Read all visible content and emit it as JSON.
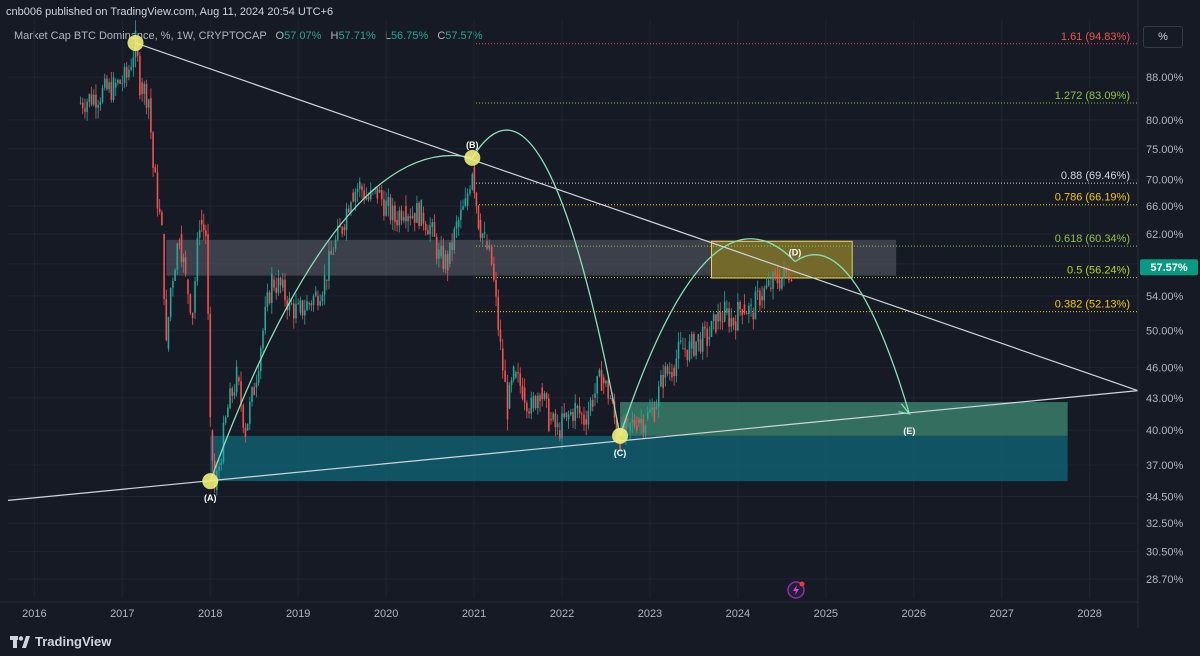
{
  "header": {
    "publisher": "cnb006 published on TradingView.com, Aug 11, 2024 20:54 UTC+6",
    "symbol": "Market Cap BTC Dominance, %, 1W, CRYPTOCAP",
    "ohlc": [
      {
        "k": "O",
        "v": "57.07%"
      },
      {
        "k": "H",
        "v": "57.71%"
      },
      {
        "k": "L",
        "v": "56.75%"
      },
      {
        "k": "C",
        "v": "57.57%"
      }
    ],
    "scale_button": "%"
  },
  "footer": {
    "brand": "TradingView",
    "brand_icon": "tradingview-logo-icon"
  },
  "colors": {
    "background": "#161a25",
    "up": "#26a69a",
    "down": "#ef5350",
    "trendline": "#d1d4dc",
    "arc": "#89e0b8",
    "pivot": "#f0f07a",
    "teal_zone": "#0f5f6e",
    "green_zone": "#3d8b73",
    "gray_zone": "#5d606b",
    "yellow_zone": "#8a7a1c"
  },
  "chart_data": {
    "type": "line",
    "title": "Market Cap BTC Dominance, %, 1W, CRYPTOCAP",
    "scale": "log",
    "x_ticks": [
      "2016",
      "2017",
      "2018",
      "2019",
      "2020",
      "2021",
      "2022",
      "2023",
      "2024",
      "2025",
      "2026",
      "2027",
      "2028"
    ],
    "y_ticks": [
      "88.00%",
      "80.00%",
      "75.00%",
      "70.00%",
      "66.00%",
      "62.00%",
      "58.00%",
      "54.00%",
      "50.00%",
      "46.00%",
      "43.00%",
      "40.00%",
      "37.00%",
      "34.50%",
      "32.50%",
      "30.50%",
      "28.70%"
    ],
    "last_price": "57.57%",
    "ylim": [
      27.5,
      100
    ],
    "xlim": [
      2015.7,
      2028.55
    ],
    "series": [
      {
        "values": [
          [
            2016.5,
            83
          ],
          [
            2016.9,
            86
          ],
          [
            2017.05,
            88
          ],
          [
            2017.15,
            95
          ],
          [
            2017.2,
            87
          ],
          [
            2017.3,
            84
          ],
          [
            2017.35,
            72
          ],
          [
            2017.45,
            62
          ],
          [
            2017.5,
            48
          ],
          [
            2017.55,
            55
          ],
          [
            2017.65,
            62
          ],
          [
            2017.72,
            56
          ],
          [
            2017.8,
            52
          ],
          [
            2017.88,
            64
          ],
          [
            2017.95,
            62
          ],
          [
            2018.0,
            40
          ],
          [
            2018.05,
            35
          ],
          [
            2018.1,
            37
          ],
          [
            2018.2,
            42
          ],
          [
            2018.3,
            45
          ],
          [
            2018.4,
            40
          ],
          [
            2018.5,
            44
          ],
          [
            2018.6,
            50
          ],
          [
            2018.7,
            56
          ],
          [
            2018.8,
            55
          ],
          [
            2018.9,
            53
          ],
          [
            2019.0,
            52
          ],
          [
            2019.1,
            53
          ],
          [
            2019.2,
            54
          ],
          [
            2019.3,
            56
          ],
          [
            2019.4,
            60
          ],
          [
            2019.5,
            63
          ],
          [
            2019.6,
            68
          ],
          [
            2019.7,
            69
          ],
          [
            2019.8,
            67
          ],
          [
            2019.9,
            68
          ],
          [
            2020.0,
            66
          ],
          [
            2020.1,
            64
          ],
          [
            2020.2,
            66
          ],
          [
            2020.3,
            65
          ],
          [
            2020.4,
            65
          ],
          [
            2020.5,
            63
          ],
          [
            2020.6,
            59
          ],
          [
            2020.7,
            58
          ],
          [
            2020.8,
            63
          ],
          [
            2020.9,
            66
          ],
          [
            2020.98,
            72
          ],
          [
            2021.05,
            64
          ],
          [
            2021.12,
            61
          ],
          [
            2021.2,
            58
          ],
          [
            2021.3,
            48
          ],
          [
            2021.38,
            42
          ],
          [
            2021.45,
            45
          ],
          [
            2021.55,
            44
          ],
          [
            2021.65,
            42
          ],
          [
            2021.75,
            44
          ],
          [
            2021.85,
            41
          ],
          [
            2021.95,
            40
          ],
          [
            2022.05,
            41
          ],
          [
            2022.15,
            42
          ],
          [
            2022.25,
            41
          ],
          [
            2022.35,
            43
          ],
          [
            2022.45,
            45
          ],
          [
            2022.55,
            43
          ],
          [
            2022.62,
            40
          ],
          [
            2022.66,
            39.5
          ],
          [
            2022.75,
            40
          ],
          [
            2022.85,
            41
          ],
          [
            2022.95,
            41
          ],
          [
            2023.05,
            42
          ],
          [
            2023.15,
            45
          ],
          [
            2023.25,
            46
          ],
          [
            2023.35,
            48
          ],
          [
            2023.45,
            48
          ],
          [
            2023.55,
            49
          ],
          [
            2023.65,
            49
          ],
          [
            2023.75,
            51
          ],
          [
            2023.85,
            52
          ],
          [
            2023.95,
            51
          ],
          [
            2024.05,
            53
          ],
          [
            2024.15,
            52
          ],
          [
            2024.25,
            54
          ],
          [
            2024.35,
            55
          ],
          [
            2024.45,
            56
          ],
          [
            2024.55,
            56.5
          ],
          [
            2024.61,
            57.57
          ]
        ]
      }
    ],
    "fib_levels": [
      {
        "label": "1.61 (94.83%)",
        "value": 94.83,
        "color": "#ef5350"
      },
      {
        "label": "1.272 (83.09%)",
        "value": 83.09,
        "color": "#8bc34a"
      },
      {
        "label": "0.88 (69.46%)",
        "value": 69.46,
        "color": "#d1d4dc"
      },
      {
        "label": "0.786 (66.19%)",
        "value": 66.19,
        "color": "#f5c518"
      },
      {
        "label": "0.618 (60.34%)",
        "value": 60.34,
        "color": "#8bc34a"
      },
      {
        "label": "0.5 (56.24%)",
        "value": 56.24,
        "color": "#b5d334"
      },
      {
        "label": "0.382 (52.13%)",
        "value": 52.13,
        "color": "#f5c518"
      }
    ],
    "pivots": [
      {
        "label": "(A)",
        "x": 2018.0,
        "y": 35.7
      },
      {
        "label": "(B)",
        "x": 2020.98,
        "y": 73.5
      },
      {
        "label": "(C)",
        "x": 2022.66,
        "y": 39.5
      },
      {
        "label": "(D)",
        "x": 2024.65,
        "y": 58.3
      },
      {
        "label": "(E)",
        "x": 2025.95,
        "y": 41.5
      }
    ],
    "zones": [
      {
        "name": "teal-support-zone",
        "x0": 2018.0,
        "x1": 2027.75,
        "y0": 35.7,
        "y1": 39.5
      },
      {
        "name": "green-target-zone",
        "x0": 2022.66,
        "x1": 2027.75,
        "y0": 39.5,
        "y1": 42.6
      },
      {
        "name": "gray-resistance-zone",
        "x0": 2017.5,
        "x1": 2025.8,
        "y0": 56.5,
        "y1": 61.2
      },
      {
        "name": "yellow-d-zone",
        "x0": 2023.7,
        "x1": 2025.3,
        "y0": 56.2,
        "y1": 61.0
      }
    ],
    "trendlines": [
      {
        "name": "upper-trendline",
        "x0": 2017.15,
        "y0": 95,
        "x1": 2028.55,
        "y1": 43.7
      },
      {
        "name": "lower-trendline",
        "x0": 2015.7,
        "y0": 34.2,
        "x1": 2028.55,
        "y1": 43.7
      }
    ]
  }
}
